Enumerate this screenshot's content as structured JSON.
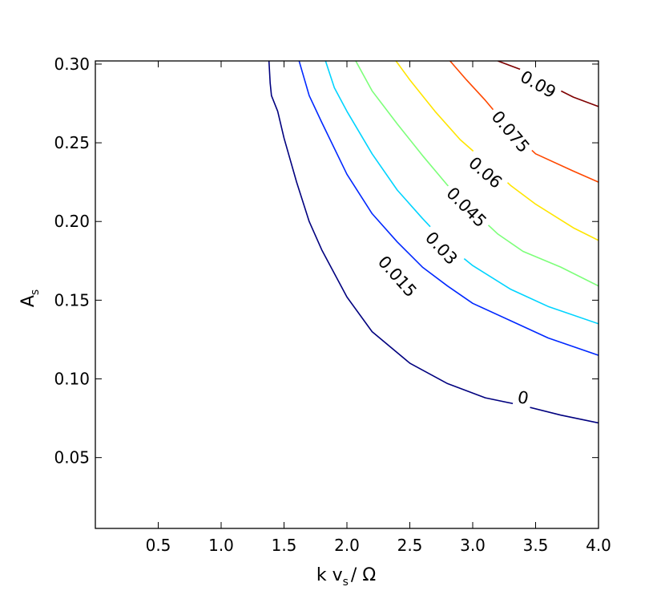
{
  "chart_data": {
    "type": "contour",
    "title": "",
    "xlabel": {
      "main": "k v",
      "sub": "s",
      "tail": "/ Ω"
    },
    "ylabel": {
      "main": "A",
      "sub": "s"
    },
    "xlim": [
      0.0,
      4.0
    ],
    "ylim": [
      0.005,
      0.302
    ],
    "xticks": [
      0.5,
      1.0,
      1.5,
      2.0,
      2.5,
      3.0,
      3.5,
      4.0
    ],
    "xtick_labels": [
      "0.5",
      "1.0",
      "1.5",
      "2.0",
      "2.5",
      "3.0",
      "3.5",
      "4.0"
    ],
    "yticks": [
      0.05,
      0.1,
      0.15,
      0.2,
      0.25,
      0.3
    ],
    "ytick_labels": [
      "0.05",
      "0.10",
      "0.15",
      "0.20",
      "0.25",
      "0.30"
    ],
    "grid": false,
    "legend": "none",
    "levels": [
      {
        "label": "0",
        "color": "#00007f",
        "points": [
          [
            1.38,
            0.302
          ],
          [
            1.39,
            0.288
          ],
          [
            1.4,
            0.28
          ],
          [
            1.45,
            0.27
          ],
          [
            1.5,
            0.253
          ],
          [
            1.6,
            0.225
          ],
          [
            1.7,
            0.2
          ],
          [
            1.8,
            0.182
          ],
          [
            2.0,
            0.152
          ],
          [
            2.2,
            0.13
          ],
          [
            2.5,
            0.11
          ],
          [
            2.8,
            0.097
          ],
          [
            3.1,
            0.088
          ],
          [
            3.4,
            0.083
          ],
          [
            3.7,
            0.077
          ],
          [
            4.0,
            0.072
          ]
        ],
        "label_at": [
          3.4,
          0.088
        ]
      },
      {
        "label": "0.015",
        "color": "#0028ff",
        "points": [
          [
            1.62,
            0.302
          ],
          [
            1.7,
            0.28
          ],
          [
            1.8,
            0.263
          ],
          [
            2.0,
            0.23
          ],
          [
            2.2,
            0.205
          ],
          [
            2.4,
            0.187
          ],
          [
            2.6,
            0.171
          ],
          [
            2.8,
            0.159
          ],
          [
            3.0,
            0.148
          ],
          [
            3.3,
            0.137
          ],
          [
            3.6,
            0.126
          ],
          [
            4.0,
            0.115
          ]
        ],
        "label_at": [
          2.4,
          0.165
        ]
      },
      {
        "label": "0.03",
        "color": "#00d4ff",
        "points": [
          [
            1.83,
            0.302
          ],
          [
            1.9,
            0.285
          ],
          [
            2.0,
            0.27
          ],
          [
            2.2,
            0.243
          ],
          [
            2.4,
            0.22
          ],
          [
            2.6,
            0.202
          ],
          [
            2.8,
            0.185
          ],
          [
            3.0,
            0.172
          ],
          [
            3.3,
            0.157
          ],
          [
            3.6,
            0.146
          ],
          [
            4.0,
            0.135
          ]
        ],
        "label_at": [
          2.75,
          0.183
        ]
      },
      {
        "label": "0.045",
        "color": "#7dff7a",
        "points": [
          [
            2.07,
            0.302
          ],
          [
            2.2,
            0.283
          ],
          [
            2.4,
            0.262
          ],
          [
            2.6,
            0.242
          ],
          [
            2.8,
            0.223
          ],
          [
            3.0,
            0.207
          ],
          [
            3.2,
            0.192
          ],
          [
            3.4,
            0.181
          ],
          [
            3.7,
            0.171
          ],
          [
            4.0,
            0.159
          ]
        ],
        "label_at": [
          2.95,
          0.209
        ]
      },
      {
        "label": "0.06",
        "color": "#ffe500",
        "points": [
          [
            2.39,
            0.302
          ],
          [
            2.5,
            0.29
          ],
          [
            2.7,
            0.27
          ],
          [
            2.9,
            0.252
          ],
          [
            3.1,
            0.238
          ],
          [
            3.3,
            0.223
          ],
          [
            3.5,
            0.211
          ],
          [
            3.8,
            0.196
          ],
          [
            4.0,
            0.188
          ]
        ],
        "label_at": [
          3.1,
          0.231
        ]
      },
      {
        "label": "0.075",
        "color": "#ff4800",
        "points": [
          [
            2.82,
            0.302
          ],
          [
            2.95,
            0.29
          ],
          [
            3.1,
            0.277
          ],
          [
            3.3,
            0.258
          ],
          [
            3.5,
            0.243
          ],
          [
            3.8,
            0.232
          ],
          [
            4.0,
            0.225
          ]
        ],
        "label_at": [
          3.3,
          0.257
        ]
      },
      {
        "label": "0.09",
        "color": "#7f0000",
        "points": [
          [
            3.2,
            0.302
          ],
          [
            3.4,
            0.296
          ],
          [
            3.6,
            0.287
          ],
          [
            3.8,
            0.279
          ],
          [
            4.0,
            0.273
          ]
        ],
        "label_at": [
          3.52,
          0.287
        ]
      }
    ]
  }
}
